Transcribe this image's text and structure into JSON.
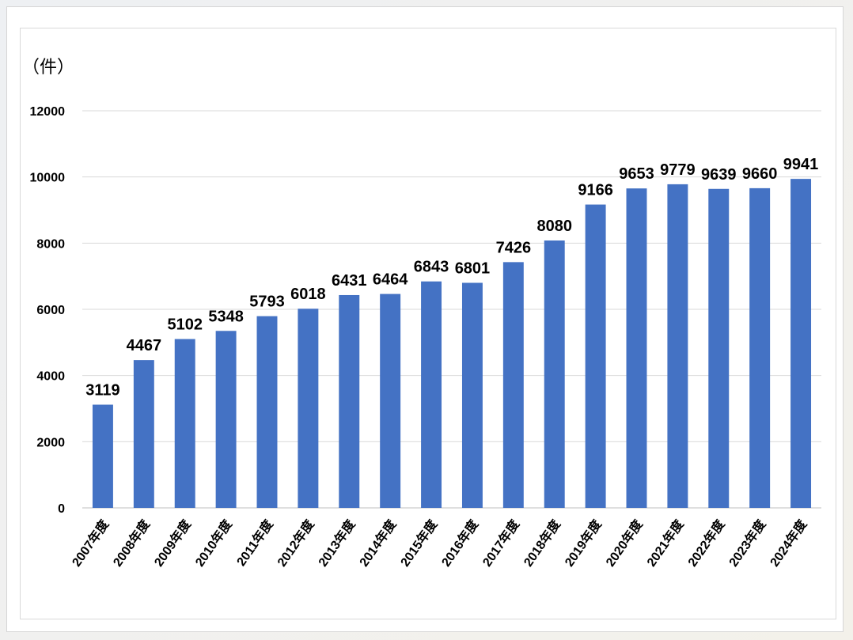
{
  "chart_data": {
    "type": "bar",
    "unit_label": "（件）",
    "categories": [
      "2007年度",
      "2008年度",
      "2009年度",
      "2010年度",
      "2011年度",
      "2012年度",
      "2013年度",
      "2014年度",
      "2015年度",
      "2016年度",
      "2017年度",
      "2018年度",
      "2019年度",
      "2020年度",
      "2021年度",
      "2022年度",
      "2023年度",
      "2024年度"
    ],
    "values": [
      3119,
      4467,
      5102,
      5348,
      5793,
      6018,
      6431,
      6464,
      6843,
      6801,
      7426,
      8080,
      9166,
      9653,
      9779,
      9639,
      9660,
      9941
    ],
    "ylim": [
      0,
      12000
    ],
    "yticks": [
      "0",
      "2000",
      "4000",
      "6000",
      "8000",
      "10000",
      "12000"
    ],
    "grid": true,
    "bar_color": "#4472C4",
    "data_labels": true,
    "legend": "none"
  }
}
